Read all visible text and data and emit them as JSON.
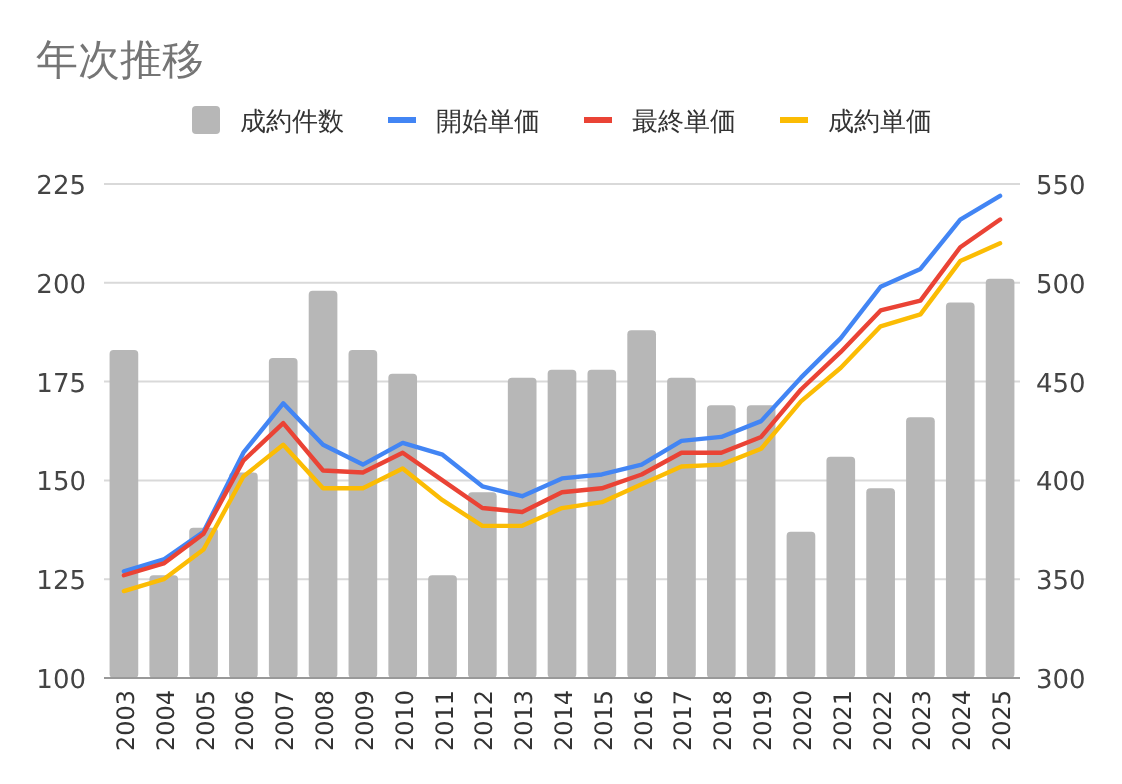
{
  "chart_data": {
    "type": "bar",
    "title": "年次推移",
    "categories": [
      "2003",
      "2004",
      "2005",
      "2006",
      "2007",
      "2008",
      "2009",
      "2010",
      "2011",
      "2012",
      "2013",
      "2014",
      "2015",
      "2016",
      "2017",
      "2018",
      "2019",
      "2020",
      "2021",
      "2022",
      "2023",
      "2024",
      "2025"
    ],
    "series": [
      {
        "name": "成約件数",
        "color": "#b7b7b7",
        "values": [
          183,
          126,
          138,
          152,
          181,
          198,
          183,
          177,
          126,
          147,
          176,
          178,
          178,
          188,
          176,
          169,
          169,
          137,
          156,
          148,
          166,
          195,
          201
        ]
      },
      {
        "name": "開始単価",
        "type": "line",
        "axis": "y2",
        "color": "#4285f4",
        "values": [
          354,
          360,
          374,
          414,
          439,
          418,
          408,
          419,
          413,
          397,
          392,
          401,
          403,
          408,
          420,
          422,
          430,
          452,
          472,
          498,
          507,
          532,
          544
        ]
      },
      {
        "name": "最終単価",
        "type": "line",
        "axis": "y2",
        "color": "#ea4335",
        "values": [
          352,
          358,
          373,
          410,
          429,
          405,
          404,
          414,
          400,
          386,
          384,
          394,
          396,
          403,
          414,
          414,
          422,
          446,
          465,
          486,
          491,
          518,
          532
        ]
      },
      {
        "name": "成約単価",
        "type": "line",
        "axis": "y2",
        "color": "#fbbc04",
        "values": [
          344,
          350,
          365,
          402,
          418,
          396,
          396,
          406,
          390,
          377,
          377,
          386,
          389,
          398,
          407,
          408,
          416,
          440,
          457,
          478,
          484,
          511,
          520
        ]
      }
    ],
    "ylim": [
      100,
      225
    ],
    "yticks": [
      100,
      125,
      150,
      175,
      200,
      225
    ],
    "y2lim": [
      300,
      550
    ],
    "y2ticks": [
      300,
      350,
      400,
      450,
      500,
      550
    ],
    "grid": "y",
    "legend": "top"
  }
}
